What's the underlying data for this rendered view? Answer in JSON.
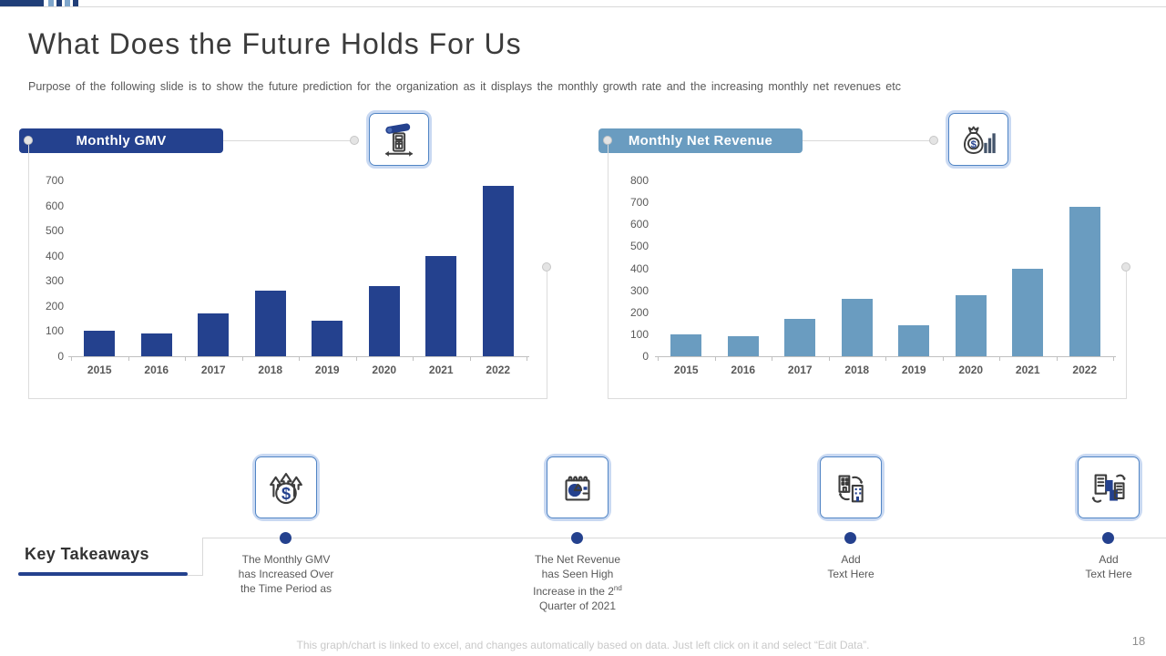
{
  "deco": {
    "bar_color": "#203E78",
    "square_colors": [
      "#7FA6CB",
      "#203E78",
      "#7FA6CB",
      "#203E78"
    ]
  },
  "header": {
    "title": "What Does the Future Holds For Us",
    "subtitle": "Purpose of the following slide is to show the future prediction for the organization as it displays the monthly growth rate and the increasing monthly net revenues etc"
  },
  "charts": [
    {
      "label": "Monthly GMV",
      "icon": "gmv-meter-icon",
      "pill_color": "#24418E"
    },
    {
      "label": "Monthly Net Revenue",
      "icon": "money-bag-chart-icon",
      "pill_color": "#6A9CC0"
    }
  ],
  "chart_data": [
    {
      "type": "bar",
      "title": "Monthly GMV",
      "categories": [
        "2015",
        "2016",
        "2017",
        "2018",
        "2019",
        "2020",
        "2021",
        "2022"
      ],
      "values": [
        100,
        90,
        170,
        260,
        140,
        280,
        400,
        680
      ],
      "xlabel": "",
      "ylabel": "",
      "ylim": [
        0,
        700
      ],
      "ytick_step": 100,
      "bar_color": "#24418E",
      "grid": false,
      "legend": false
    },
    {
      "type": "bar",
      "title": "Monthly Net Revenue",
      "categories": [
        "2015",
        "2016",
        "2017",
        "2018",
        "2019",
        "2020",
        "2021",
        "2022"
      ],
      "values": [
        100,
        90,
        170,
        260,
        140,
        280,
        400,
        680
      ],
      "xlabel": "",
      "ylabel": "",
      "ylim": [
        0,
        800
      ],
      "ytick_step": 100,
      "bar_color": "#6A9CC0",
      "grid": false,
      "legend": false
    }
  ],
  "takeaways": {
    "heading": "Key Takeaways",
    "items": [
      {
        "icon": "dollar-growth-icon",
        "lines": [
          "The Monthly GMV",
          "has Increased Over",
          "the Time Period as"
        ]
      },
      {
        "icon": "calendar-pie-chart-icon",
        "lines": [
          "The Net Revenue",
          "has Seen High",
          "Increase in the 2nd",
          "Quarter of 2021"
        ]
      },
      {
        "icon": "buildings-transfer-icon",
        "lines": [
          "Add",
          "Text Here"
        ]
      },
      {
        "icon": "buildings-swap-icon",
        "lines": [
          "Add",
          "Text Here"
        ]
      }
    ]
  },
  "footer": {
    "note": "This graph/chart is linked to excel, and changes automatically based on data. Just left click on it and select “Edit Data”.",
    "page": "18"
  }
}
